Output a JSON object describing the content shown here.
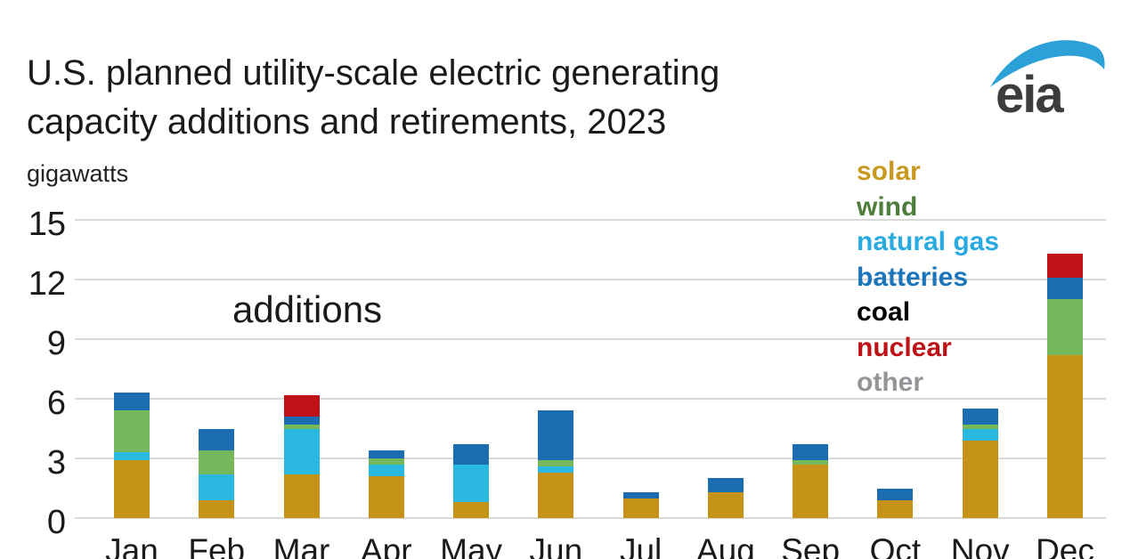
{
  "header": {
    "title_line1": "U.S. planned utility-scale electric generating",
    "title_line2": "capacity additions and retirements, 2023",
    "units_label": "gigawatts",
    "logo_text": "eia",
    "logo_swoosh_color": "#2ba1d8"
  },
  "annotation": {
    "label": "additions"
  },
  "legend": {
    "items": [
      {
        "label": "solar",
        "color": "#c9991f"
      },
      {
        "label": "wind",
        "color": "#4e7e3b"
      },
      {
        "label": "natural gas",
        "color": "#29abe2"
      },
      {
        "label": "batteries",
        "color": "#1b75bb"
      },
      {
        "label": "coal",
        "color": "#000000"
      },
      {
        "label": "nuclear",
        "color": "#be1118"
      },
      {
        "label": "other",
        "color": "#939598"
      }
    ]
  },
  "chart_data": {
    "type": "bar",
    "stacked": true,
    "title": "U.S. planned utility-scale electric generating capacity additions and retirements, 2023",
    "ylabel": "gigawatts",
    "ylim": [
      0,
      15
    ],
    "yticks": [
      0,
      3,
      6,
      9,
      12,
      15
    ],
    "grid": true,
    "legend_position": "top-right",
    "annotation": "additions",
    "categories": [
      "Jan",
      "Feb",
      "Mar",
      "Apr",
      "May",
      "Jun",
      "Jul",
      "Aug",
      "Sep",
      "Oct",
      "Nov",
      "Dec"
    ],
    "series": [
      {
        "name": "solar",
        "color": "#c49317",
        "values": [
          2.9,
          0.9,
          2.2,
          2.1,
          0.8,
          2.3,
          1.0,
          1.3,
          2.7,
          0.9,
          3.9,
          8.2
        ]
      },
      {
        "name": "natural gas",
        "color": "#2bb8e0",
        "values": [
          0.4,
          1.3,
          2.3,
          0.6,
          1.9,
          0.3,
          0,
          0,
          0,
          0,
          0.6,
          0
        ]
      },
      {
        "name": "wind",
        "color": "#77b75b",
        "values": [
          2.1,
          1.2,
          0.2,
          0.3,
          0,
          0.3,
          0,
          0,
          0.2,
          0,
          0.2,
          2.8
        ]
      },
      {
        "name": "batteries",
        "color": "#1b6cb1",
        "values": [
          0.9,
          1.1,
          0.4,
          0.4,
          1.0,
          2.5,
          0.3,
          0.7,
          0.8,
          0.6,
          0.8,
          1.1
        ]
      },
      {
        "name": "nuclear",
        "color": "#be1118",
        "values": [
          0,
          0,
          1.1,
          0,
          0,
          0,
          0,
          0,
          0,
          0,
          0,
          1.2
        ]
      }
    ]
  }
}
